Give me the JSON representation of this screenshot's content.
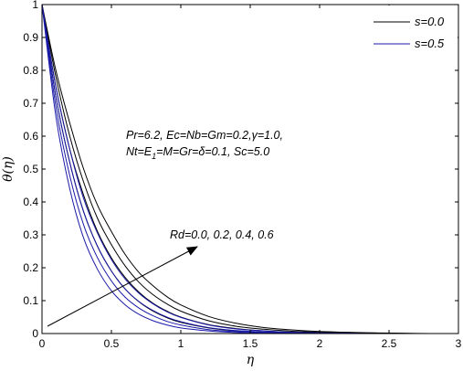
{
  "chart_data": {
    "type": "line",
    "xlabel": "η",
    "ylabel": "θ(η)",
    "xlim": [
      0,
      3
    ],
    "ylim": [
      0,
      1
    ],
    "xticks": [
      "0",
      "0.5",
      "1",
      "1.5",
      "2",
      "2.5",
      "3"
    ],
    "yticks": [
      "0",
      "0.1",
      "0.2",
      "0.3",
      "0.4",
      "0.5",
      "0.6",
      "0.7",
      "0.8",
      "0.9",
      "1"
    ],
    "legend_position": "top-right",
    "legend": [
      {
        "label": "s=0.0",
        "color": "#000000"
      },
      {
        "label": "s=0.5",
        "color": "#1a1aa8"
      }
    ],
    "annotations": {
      "params_line1": "Pr=6.2, Ec=Nb=Gm=0.2,γ=1.0,",
      "params_line2_a": "Nt=E",
      "params_line2_sub": "1",
      "params_line2_b": "=M=Gr=δ=0.1, Sc=5.0",
      "arrow_label": "Rd=0.0, 0.2, 0.4, 0.6"
    },
    "x": [
      0,
      0.1,
      0.2,
      0.3,
      0.4,
      0.5,
      0.6,
      0.7,
      0.8,
      0.9,
      1.0,
      1.2,
      1.4,
      1.6,
      1.8,
      2.0,
      2.2,
      2.4,
      2.6,
      2.8,
      3.0
    ],
    "series": [
      {
        "group": "s=0.0",
        "Rd": "0.0",
        "color": "#000000",
        "values": [
          1,
          0.72,
          0.52,
          0.37,
          0.265,
          0.19,
          0.135,
          0.096,
          0.068,
          0.048,
          0.034,
          0.017,
          0.008,
          0.004,
          0.002,
          0.001,
          0,
          0,
          0,
          0,
          0
        ]
      },
      {
        "group": "s=0.0",
        "Rd": "0.2",
        "color": "#000000",
        "values": [
          1,
          0.75,
          0.56,
          0.42,
          0.31,
          0.23,
          0.17,
          0.125,
          0.092,
          0.068,
          0.05,
          0.027,
          0.015,
          0.008,
          0.004,
          0.002,
          0.001,
          0,
          0,
          0,
          0
        ]
      },
      {
        "group": "s=0.0",
        "Rd": "0.4",
        "color": "#000000",
        "values": [
          1,
          0.78,
          0.6,
          0.46,
          0.35,
          0.27,
          0.205,
          0.155,
          0.118,
          0.09,
          0.068,
          0.039,
          0.022,
          0.013,
          0.007,
          0.004,
          0.002,
          0.001,
          0,
          0,
          0
        ]
      },
      {
        "group": "s=0.0",
        "Rd": "0.6",
        "color": "#000000",
        "values": [
          1,
          0.8,
          0.64,
          0.5,
          0.39,
          0.31,
          0.24,
          0.185,
          0.145,
          0.112,
          0.087,
          0.052,
          0.031,
          0.018,
          0.011,
          0.006,
          0.004,
          0.002,
          0.001,
          0,
          0
        ]
      },
      {
        "group": "s=0.5",
        "Rd": "0.0",
        "color": "#1a1aa8",
        "values": [
          1,
          0.66,
          0.44,
          0.29,
          0.195,
          0.13,
          0.087,
          0.058,
          0.039,
          0.026,
          0.017,
          0.008,
          0.003,
          0.001,
          0,
          0,
          0,
          0,
          0,
          0,
          0
        ]
      },
      {
        "group": "s=0.5",
        "Rd": "0.2",
        "color": "#1a1aa8",
        "values": [
          1,
          0.69,
          0.48,
          0.33,
          0.23,
          0.16,
          0.11,
          0.077,
          0.054,
          0.037,
          0.026,
          0.012,
          0.006,
          0.003,
          0.001,
          0,
          0,
          0,
          0,
          0,
          0
        ]
      },
      {
        "group": "s=0.5",
        "Rd": "0.4",
        "color": "#1a1aa8",
        "values": [
          1,
          0.72,
          0.52,
          0.37,
          0.265,
          0.19,
          0.135,
          0.097,
          0.07,
          0.05,
          0.036,
          0.018,
          0.009,
          0.005,
          0.002,
          0.001,
          0,
          0,
          0,
          0,
          0
        ]
      },
      {
        "group": "s=0.5",
        "Rd": "0.6",
        "color": "#1a1aa8",
        "values": [
          1,
          0.75,
          0.56,
          0.41,
          0.305,
          0.225,
          0.165,
          0.122,
          0.09,
          0.066,
          0.049,
          0.026,
          0.014,
          0.008,
          0.004,
          0.002,
          0.001,
          0,
          0,
          0,
          0
        ]
      }
    ]
  }
}
